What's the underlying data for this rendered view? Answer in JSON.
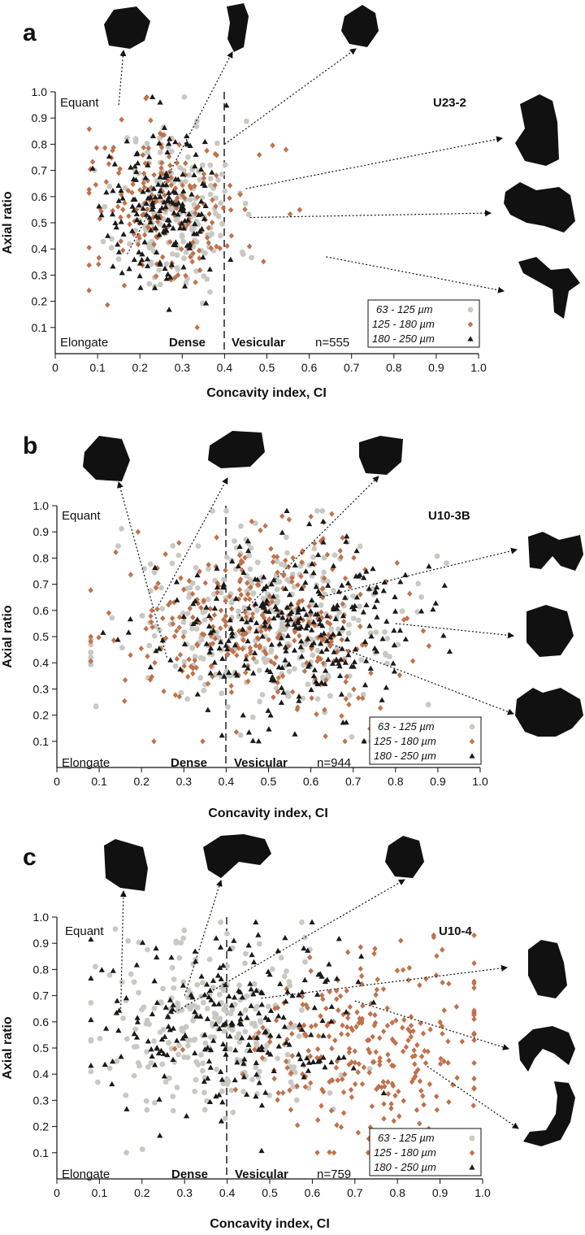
{
  "figure": {
    "panels": [
      "a",
      "b",
      "c"
    ]
  },
  "chart_data": [
    {
      "type": "scatter",
      "panel_label": "a",
      "sample": "U23-2",
      "n_label": "n=555",
      "xlabel": "Concavity index, CI",
      "ylabel": "Axial ratio",
      "xlim": [
        0,
        1.0
      ],
      "ylim": [
        0,
        1.0
      ],
      "x_ticks": [
        "0",
        "0.1",
        "0.2",
        "0.3",
        "0.4",
        "0.5",
        "0.6",
        "0.7",
        "0.8",
        "0.9",
        "1.0"
      ],
      "y_ticks": [
        "0.1",
        "0.2",
        "0.3",
        "0.4",
        "0.5",
        "0.6",
        "0.7",
        "0.8",
        "0.9",
        "1.0"
      ],
      "threshold_x": 0.4,
      "annotations": {
        "equant": "Equant",
        "elongate": "Elongate",
        "dense": "Dense",
        "vesicular": "Vesicular"
      },
      "grid": false,
      "legend_position": "bottom-right",
      "series": [
        {
          "name": "63 - 125 µm",
          "marker": "circle",
          "color": "#c9c9c3",
          "cx": 0.29,
          "cy": 0.55,
          "sx": 0.07,
          "sy": 0.17,
          "n": 185,
          "seed": 11
        },
        {
          "name": "125 - 180 µm",
          "marker": "diamond",
          "color": "#c0724c",
          "cx": 0.27,
          "cy": 0.56,
          "sx": 0.1,
          "sy": 0.17,
          "n": 190,
          "seed": 12
        },
        {
          "name": "180 - 250 µm",
          "marker": "triangle",
          "color": "#1a1a1a",
          "cx": 0.25,
          "cy": 0.55,
          "sx": 0.07,
          "sy": 0.15,
          "n": 180,
          "seed": 13
        }
      ],
      "grain_links": [
        {
          "x": 0.15,
          "y": 0.95
        },
        {
          "x": 0.17,
          "y": 0.38
        },
        {
          "x": 0.4,
          "y": 0.8
        },
        {
          "x": 0.45,
          "y": 0.63
        },
        {
          "x": 0.46,
          "y": 0.52
        },
        {
          "x": 0.64,
          "y": 0.37
        }
      ]
    },
    {
      "type": "scatter",
      "panel_label": "b",
      "sample": "U10-3B",
      "n_label": "n=944",
      "xlabel": "Concavity index, CI",
      "ylabel": "Axial ratio",
      "xlim": [
        0,
        1.0
      ],
      "ylim": [
        0,
        1.0
      ],
      "x_ticks": [
        "0",
        "0.1",
        "0.2",
        "0.3",
        "0.4",
        "0.5",
        "0.6",
        "0.7",
        "0.8",
        "0.9",
        "1.0"
      ],
      "y_ticks": [
        "0.1",
        "0.2",
        "0.3",
        "0.4",
        "0.5",
        "0.6",
        "0.7",
        "0.8",
        "0.9",
        "1.0"
      ],
      "threshold_x": 0.4,
      "annotations": {
        "equant": "Equant",
        "elongate": "Elongate",
        "dense": "Dense",
        "vesicular": "Vesicular"
      },
      "grid": false,
      "legend_position": "bottom-right",
      "series": [
        {
          "name": "63 - 125 µm",
          "marker": "circle",
          "color": "#c9c9c3",
          "cx": 0.5,
          "cy": 0.55,
          "sx": 0.17,
          "sy": 0.17,
          "n": 320,
          "seed": 21
        },
        {
          "name": "125 - 180 µm",
          "marker": "diamond",
          "color": "#c0724c",
          "cx": 0.47,
          "cy": 0.54,
          "sx": 0.16,
          "sy": 0.17,
          "n": 330,
          "seed": 22
        },
        {
          "name": "180 - 250 µm",
          "marker": "triangle",
          "color": "#1a1a1a",
          "cx": 0.55,
          "cy": 0.53,
          "sx": 0.15,
          "sy": 0.16,
          "n": 294,
          "seed": 23
        }
      ],
      "grain_links": [
        {
          "x": 0.26,
          "y": 0.42
        },
        {
          "x": 0.24,
          "y": 0.62
        },
        {
          "x": 0.43,
          "y": 0.58
        },
        {
          "x": 0.62,
          "y": 0.65
        },
        {
          "x": 0.8,
          "y": 0.55
        },
        {
          "x": 0.65,
          "y": 0.47
        }
      ]
    },
    {
      "type": "scatter",
      "panel_label": "c",
      "sample": "U10-4",
      "n_label": "n=759",
      "xlabel": "Concavity index, CI",
      "ylabel": "Axial ratio",
      "xlim": [
        0,
        1.0
      ],
      "ylim": [
        0,
        1.0
      ],
      "x_ticks": [
        "0",
        "0.1",
        "0.2",
        "0.3",
        "0.4",
        "0.5",
        "0.6",
        "0.7",
        "0.8",
        "0.9",
        "1.0"
      ],
      "y_ticks": [
        "0.1",
        "0.2",
        "0.3",
        "0.4",
        "0.5",
        "0.6",
        "0.7",
        "0.8",
        "0.9",
        "1.0"
      ],
      "threshold_x": 0.4,
      "annotations": {
        "equant": "Equant",
        "elongate": "Elongate",
        "dense": "Dense",
        "vesicular": "Vesicular"
      },
      "grid": false,
      "legend_position": "bottom-right",
      "series": [
        {
          "name": "63 - 125 µm",
          "marker": "circle",
          "color": "#c9c9c3",
          "cx": 0.35,
          "cy": 0.56,
          "sx": 0.14,
          "sy": 0.18,
          "n": 250,
          "seed": 31
        },
        {
          "name": "125 - 180 µm",
          "marker": "diamond",
          "color": "#c0724c",
          "cx": 0.72,
          "cy": 0.5,
          "sx": 0.16,
          "sy": 0.18,
          "n": 279,
          "seed": 32
        },
        {
          "name": "180 - 250 µm",
          "marker": "triangle",
          "color": "#1a1a1a",
          "cx": 0.42,
          "cy": 0.6,
          "sx": 0.15,
          "sy": 0.16,
          "n": 230,
          "seed": 33
        }
      ],
      "grain_links": [
        {
          "x": 0.15,
          "y": 0.65
        },
        {
          "x": 0.3,
          "y": 0.7
        },
        {
          "x": 0.27,
          "y": 0.63
        },
        {
          "x": 0.48,
          "y": 0.69
        },
        {
          "x": 0.7,
          "y": 0.68
        },
        {
          "x": 0.87,
          "y": 0.43
        }
      ]
    }
  ]
}
